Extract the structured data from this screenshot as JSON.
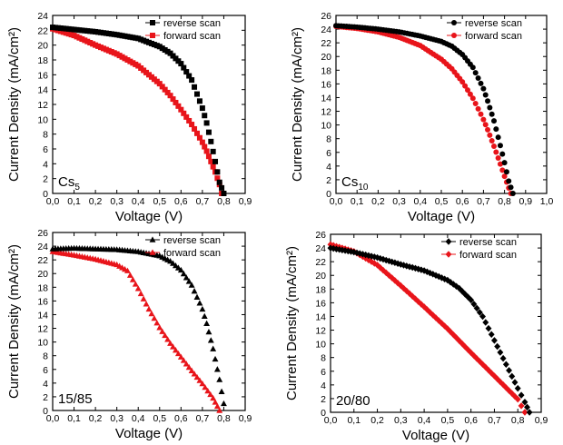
{
  "figure": {
    "panels": [
      {
        "id": "cs5",
        "label_main": "Cs",
        "label_sub": "5",
        "marker": "square",
        "xlabel": "Voltage (V)",
        "ylabel": "Current Density (mA/cm²)",
        "xlim": [
          0,
          0.9
        ],
        "ylim": [
          0,
          24
        ],
        "xticks": [
          "0,0",
          "0,1",
          "0,2",
          "0,3",
          "0,4",
          "0,5",
          "0,6",
          "0,7",
          "0,8",
          "0,9"
        ],
        "yticks": [
          "0",
          "2",
          "4",
          "6",
          "8",
          "10",
          "12",
          "14",
          "16",
          "18",
          "20",
          "22",
          "24"
        ],
        "legend": [
          "reverse scan",
          "forward scan"
        ]
      },
      {
        "id": "cs10",
        "label_main": "Cs",
        "label_sub": "10",
        "marker": "circle",
        "xlabel": "Voltage (V)",
        "ylabel": "Current Density (mA/cm²)",
        "xlim": [
          0,
          1.0
        ],
        "ylim": [
          0,
          26
        ],
        "xticks": [
          "0,0",
          "0,1",
          "0,2",
          "0,3",
          "0,4",
          "0,5",
          "0,6",
          "0,7",
          "0,8",
          "0,9",
          "1,0"
        ],
        "yticks": [
          "0",
          "2",
          "4",
          "6",
          "8",
          "10",
          "12",
          "14",
          "16",
          "18",
          "20",
          "22",
          "24",
          "26"
        ],
        "legend": [
          "reverse scan",
          "forward scan"
        ]
      },
      {
        "id": "15_85",
        "label_main": "15/85",
        "label_sub": "",
        "marker": "triangle",
        "xlabel": "Voltage (V)",
        "ylabel": "Current Density (mA/cm²)",
        "xlim": [
          0,
          0.9
        ],
        "ylim": [
          0,
          26
        ],
        "xticks": [
          "0,0",
          "0,1",
          "0,2",
          "0,3",
          "0,4",
          "0,5",
          "0,6",
          "0,7",
          "0,8",
          "0,9"
        ],
        "yticks": [
          "0",
          "2",
          "4",
          "6",
          "8",
          "10",
          "12",
          "14",
          "16",
          "18",
          "20",
          "22",
          "24",
          "26"
        ],
        "legend": [
          "reverse scan",
          "forward scan"
        ]
      },
      {
        "id": "20_80",
        "label_main": "20/80",
        "label_sub": "",
        "marker": "diamond",
        "xlabel": "Voltage (V)",
        "ylabel": "Current Density (mA/cm²)",
        "xlim": [
          0,
          0.9
        ],
        "ylim": [
          0,
          26
        ],
        "xticks": [
          "0,0",
          "0,1",
          "0,2",
          "0,3",
          "0,4",
          "0,5",
          "0,6",
          "0,7",
          "0,8",
          "0,9"
        ],
        "yticks": [
          "0",
          "2",
          "4",
          "6",
          "8",
          "10",
          "12",
          "14",
          "16",
          "18",
          "20",
          "22",
          "24",
          "26"
        ],
        "legend": [
          "reverse scan",
          "forward scan"
        ]
      }
    ],
    "colors": {
      "reverse": "#000000",
      "forward": "#e8141a",
      "axis": "#000000"
    }
  },
  "chart_data": [
    {
      "type": "scatter",
      "xlabel": "Voltage (V)",
      "ylabel": "Current Density (mA/cm²)",
      "xlim": [
        0,
        0.9
      ],
      "ylim": [
        0,
        24
      ],
      "series": [
        {
          "name": "reverse scan",
          "x": [
            0.0,
            0.1,
            0.2,
            0.3,
            0.4,
            0.5,
            0.55,
            0.6,
            0.65,
            0.7,
            0.72,
            0.74,
            0.76,
            0.78,
            0.8
          ],
          "y": [
            22.4,
            22.1,
            21.8,
            21.4,
            20.9,
            19.8,
            18.9,
            17.5,
            15.3,
            11.5,
            9.5,
            7.0,
            4.3,
            1.5,
            0.0
          ]
        },
        {
          "name": "forward scan",
          "x": [
            0.0,
            0.1,
            0.2,
            0.3,
            0.4,
            0.5,
            0.55,
            0.6,
            0.65,
            0.7,
            0.72,
            0.74,
            0.76,
            0.78,
            0.79
          ],
          "y": [
            22.2,
            21.3,
            20.0,
            18.8,
            17.2,
            14.8,
            13.2,
            11.3,
            9.3,
            6.9,
            5.7,
            4.3,
            2.9,
            1.2,
            0.0
          ]
        }
      ]
    },
    {
      "type": "scatter",
      "xlabel": "Voltage (V)",
      "ylabel": "Current Density (mA/cm²)",
      "xlim": [
        0,
        1.0
      ],
      "ylim": [
        0,
        26
      ],
      "series": [
        {
          "name": "reverse scan",
          "x": [
            0.0,
            0.1,
            0.2,
            0.3,
            0.4,
            0.5,
            0.55,
            0.6,
            0.65,
            0.7,
            0.72,
            0.75,
            0.78,
            0.8,
            0.82,
            0.84
          ],
          "y": [
            24.5,
            24.3,
            24.0,
            23.6,
            23.0,
            22.2,
            21.5,
            20.3,
            18.4,
            15.3,
            13.5,
            10.6,
            7.0,
            4.5,
            1.8,
            0.0
          ]
        },
        {
          "name": "forward scan",
          "x": [
            0.0,
            0.1,
            0.2,
            0.3,
            0.4,
            0.5,
            0.55,
            0.6,
            0.65,
            0.7,
            0.72,
            0.75,
            0.78,
            0.8,
            0.82,
            0.83
          ],
          "y": [
            24.4,
            24.1,
            23.6,
            22.8,
            21.6,
            19.6,
            18.2,
            16.3,
            13.9,
            10.8,
            9.3,
            6.9,
            4.3,
            2.5,
            0.8,
            0.0
          ]
        }
      ]
    },
    {
      "type": "scatter",
      "xlabel": "Voltage (V)",
      "ylabel": "Current Density (mA/cm²)",
      "xlim": [
        0,
        0.9
      ],
      "ylim": [
        0,
        26
      ],
      "series": [
        {
          "name": "reverse scan",
          "x": [
            0.0,
            0.1,
            0.2,
            0.3,
            0.4,
            0.5,
            0.55,
            0.6,
            0.65,
            0.7,
            0.72,
            0.75,
            0.78,
            0.8
          ],
          "y": [
            23.6,
            23.7,
            23.6,
            23.5,
            23.2,
            22.6,
            21.8,
            20.5,
            18.3,
            14.8,
            12.7,
            9.0,
            4.5,
            1.0
          ]
        },
        {
          "name": "forward scan",
          "x": [
            0.0,
            0.1,
            0.2,
            0.3,
            0.35,
            0.4,
            0.45,
            0.5,
            0.55,
            0.6,
            0.65,
            0.7,
            0.75,
            0.78
          ],
          "y": [
            23.2,
            22.7,
            22.1,
            21.3,
            20.4,
            17.8,
            14.8,
            12.1,
            9.8,
            7.8,
            5.8,
            3.9,
            1.8,
            0.0
          ]
        }
      ]
    },
    {
      "type": "scatter",
      "xlabel": "Voltage (V)",
      "ylabel": "Current Density (mA/cm²)",
      "xlim": [
        0,
        0.9
      ],
      "ylim": [
        0,
        26
      ],
      "series": [
        {
          "name": "reverse scan",
          "x": [
            0.0,
            0.1,
            0.2,
            0.3,
            0.4,
            0.5,
            0.55,
            0.6,
            0.65,
            0.7,
            0.75,
            0.8,
            0.83,
            0.85
          ],
          "y": [
            24.0,
            23.4,
            22.6,
            21.6,
            20.7,
            19.3,
            18.1,
            16.4,
            14.0,
            10.5,
            7.0,
            3.5,
            1.5,
            0.0
          ]
        },
        {
          "name": "forward scan",
          "x": [
            0.0,
            0.1,
            0.2,
            0.3,
            0.4,
            0.5,
            0.6,
            0.7,
            0.8,
            0.83
          ],
          "y": [
            24.5,
            23.5,
            21.5,
            18.5,
            15.4,
            12.2,
            8.7,
            5.3,
            1.9,
            0.0
          ]
        }
      ]
    }
  ]
}
